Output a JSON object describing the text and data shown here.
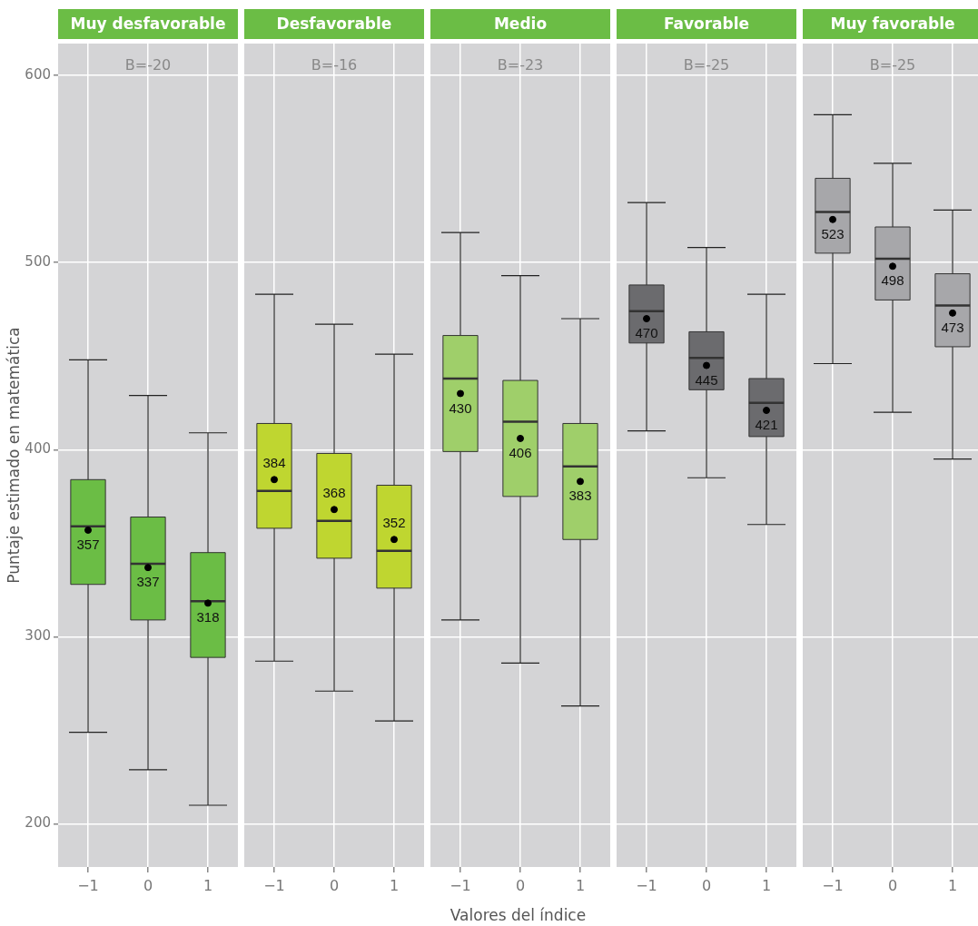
{
  "chart_data": [
    {
      "type": "box",
      "title": "Muy desfavorable",
      "ylabel": "Puntaje estimado en matemática",
      "categories": [
        "−1",
        "0",
        "1"
      ],
      "color": "#6bbd45",
      "annotations": [
        "B=-20"
      ],
      "ylim": [
        177,
        617
      ],
      "yticks": [
        200,
        300,
        400,
        500,
        600
      ],
      "grid": true,
      "data_labels": true,
      "marker": "circle",
      "boxes": [
        {
          "low": 249,
          "q1": 328,
          "median": 359,
          "q3": 384,
          "high": 448
        },
        {
          "low": 229,
          "q1": 309,
          "median": 339,
          "q3": 364,
          "high": 429
        },
        {
          "low": 210,
          "q1": 289,
          "median": 319,
          "q3": 345,
          "high": 409
        }
      ],
      "series": [
        {
          "type": "scatter",
          "x": [
            "−1",
            "0",
            "1"
          ],
          "color": "#000000",
          "values": [
            357,
            337,
            318
          ]
        }
      ]
    },
    {
      "type": "box",
      "title": "Desfavorable",
      "categories": [
        "−1",
        "0",
        "1"
      ],
      "color": "#bfd630",
      "annotations": [
        "B=-16"
      ],
      "ylim": [
        177,
        617
      ],
      "yticks": [
        200,
        300,
        400,
        500,
        600
      ],
      "grid": true,
      "data_labels": true,
      "marker": "circle",
      "tick_labels": "x",
      "boxes": [
        {
          "low": 287,
          "q1": 358,
          "median": 378,
          "q3": 414,
          "high": 483
        },
        {
          "low": 271,
          "q1": 342,
          "median": 362,
          "q3": 398,
          "high": 467
        },
        {
          "low": 255,
          "q1": 326,
          "median": 346,
          "q3": 381,
          "high": 451
        }
      ],
      "series": [
        {
          "type": "scatter",
          "x": [
            "−1",
            "0",
            "1"
          ],
          "color": "#000000",
          "values": [
            384,
            368,
            352
          ]
        }
      ]
    },
    {
      "type": "box",
      "title": "Medio",
      "xlabel": "Valores del índice",
      "categories": [
        "−1",
        "0",
        "1"
      ],
      "color": "#9fcf6a",
      "annotations": [
        "B=-23"
      ],
      "ylim": [
        177,
        617
      ],
      "yticks": [
        200,
        300,
        400,
        500,
        600
      ],
      "grid": true,
      "data_labels": true,
      "marker": "circle",
      "tick_labels": "x",
      "boxes": [
        {
          "low": 309,
          "q1": 399,
          "median": 438,
          "q3": 461,
          "high": 516
        },
        {
          "low": 286,
          "q1": 375,
          "median": 415,
          "q3": 437,
          "high": 493
        },
        {
          "low": 263,
          "q1": 352,
          "median": 391,
          "q3": 414,
          "high": 470
        }
      ],
      "series": [
        {
          "type": "scatter",
          "x": [
            "−1",
            "0",
            "1"
          ],
          "color": "#000000",
          "values": [
            430,
            406,
            383
          ]
        }
      ]
    },
    {
      "type": "box",
      "title": "Favorable",
      "categories": [
        "−1",
        "0",
        "1"
      ],
      "color": "#6b6b6e",
      "annotations": [
        "B=-25"
      ],
      "ylim": [
        177,
        617
      ],
      "yticks": [
        200,
        300,
        400,
        500,
        600
      ],
      "grid": true,
      "data_labels": true,
      "marker": "circle",
      "tick_labels": "x",
      "boxes": [
        {
          "low": 410,
          "q1": 457,
          "median": 474,
          "q3": 488,
          "high": 532
        },
        {
          "low": 385,
          "q1": 432,
          "median": 449,
          "q3": 463,
          "high": 508
        },
        {
          "low": 360,
          "q1": 407,
          "median": 425,
          "q3": 438,
          "high": 483
        }
      ],
      "series": [
        {
          "type": "scatter",
          "x": [
            "−1",
            "0",
            "1"
          ],
          "color": "#000000",
          "values": [
            470,
            445,
            421
          ]
        }
      ]
    },
    {
      "type": "box",
      "title": "Muy favorable",
      "categories": [
        "−1",
        "0",
        "1"
      ],
      "color": "#a7a7aa",
      "annotations": [
        "B=-25"
      ],
      "ylim": [
        177,
        617
      ],
      "yticks": [
        200,
        300,
        400,
        500,
        600
      ],
      "grid": true,
      "data_labels": true,
      "marker": "circle",
      "tick_labels": "x",
      "boxes": [
        {
          "low": 446,
          "q1": 505,
          "median": 527,
          "q3": 545,
          "high": 579
        },
        {
          "low": 420,
          "q1": 480,
          "median": 502,
          "q3": 519,
          "high": 553
        },
        {
          "low": 395,
          "q1": 455,
          "median": 477,
          "q3": 494,
          "high": 528
        }
      ],
      "series": [
        {
          "type": "scatter",
          "x": [
            "−1",
            "0",
            "1"
          ],
          "color": "#000000",
          "values": [
            523,
            498,
            473
          ]
        }
      ]
    }
  ]
}
